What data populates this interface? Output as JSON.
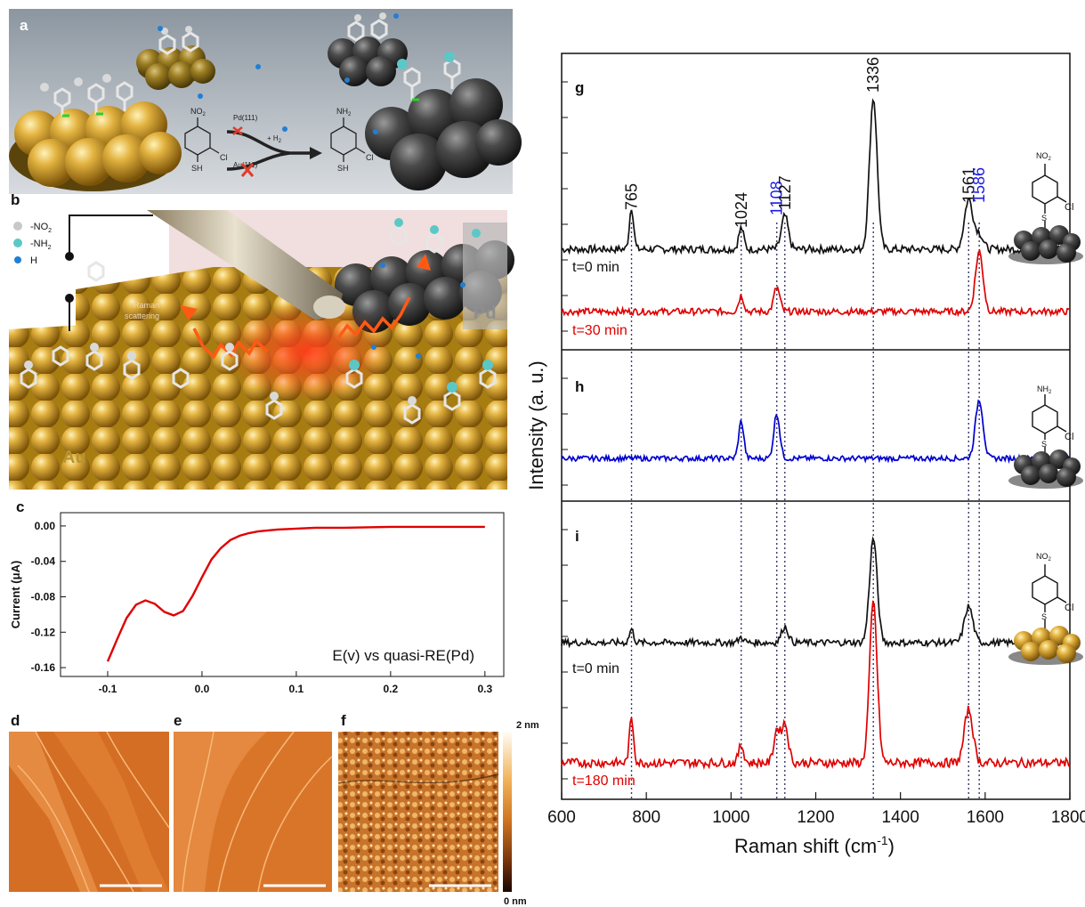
{
  "panel_letters": {
    "a": "a",
    "b": "b",
    "c": "c",
    "d": "d",
    "e": "e",
    "f": "f",
    "g": "g",
    "h": "h",
    "i": "i"
  },
  "scheme_a": {
    "reactant_group": "NO",
    "reactant_group_sub": "2",
    "reactant_cl": "Cl",
    "reactant_sh": "SH",
    "product_group": "NH",
    "product_group_sub": "2",
    "product_cl": "Cl",
    "product_sh": "SH",
    "catalyst_pd": "Pd(111)",
    "catalyst_au": "Au(111)",
    "h2_label": "+ H",
    "h2_sub": "2"
  },
  "legend_b": [
    {
      "text": "-NO",
      "sub": "2",
      "color": "#c8c8c8"
    },
    {
      "text": "-NH",
      "sub": "2",
      "color": "#5cc7c7"
    },
    {
      "text": "H",
      "sub": "",
      "color": "#1f7fd4"
    }
  ],
  "panel_b": {
    "raman": "Raman",
    "raman2": "scattering",
    "pd": "Pd",
    "au": "Au"
  },
  "afm": {
    "scale_max": "2 nm",
    "scale_min": "0 nm"
  },
  "colors": {
    "black_trace": "#111111",
    "red_trace": "#e00000",
    "blue_trace": "#0000d0",
    "blue_label": "#1a1ae6",
    "au": "#c9a03a",
    "pd": "#3d3d3d"
  },
  "chart_data": [
    {
      "type": "line",
      "panel": "c",
      "ylabel": "Current (μA)",
      "annotation": "E(v) vs quasi-RE(Pd)",
      "xlim": [
        -0.15,
        0.32
      ],
      "ylim": [
        -0.17,
        0.015
      ],
      "xticks": [
        -0.1,
        0.0,
        0.1,
        0.2,
        0.3
      ],
      "xtick_labels": [
        "-0.1",
        "0.0",
        "0.1",
        "0.2",
        "0.3"
      ],
      "yticks": [
        0.0,
        -0.04,
        -0.08,
        -0.12,
        -0.16
      ],
      "ytick_labels": [
        "0.00",
        "-0.04",
        "-0.08",
        "-0.12",
        "-0.16"
      ],
      "series": [
        {
          "color": "#e00000",
          "x": [
            -0.1,
            -0.09,
            -0.08,
            -0.07,
            -0.06,
            -0.05,
            -0.04,
            -0.03,
            -0.02,
            -0.01,
            0.0,
            0.01,
            0.02,
            0.03,
            0.04,
            0.05,
            0.06,
            0.08,
            0.1,
            0.12,
            0.15,
            0.2,
            0.25,
            0.3
          ],
          "y": [
            -0.153,
            -0.128,
            -0.104,
            -0.089,
            -0.084,
            -0.088,
            -0.097,
            -0.101,
            -0.096,
            -0.079,
            -0.058,
            -0.038,
            -0.025,
            -0.016,
            -0.011,
            -0.008,
            -0.006,
            -0.004,
            -0.003,
            -0.002,
            -0.002,
            -0.001,
            -0.001,
            -0.001
          ]
        }
      ]
    },
    {
      "type": "line",
      "panels": [
        "g",
        "h",
        "i"
      ],
      "xlabel": "Raman shift (cm",
      "xlabel_sup": "-1",
      "xlabel_close": ")",
      "ylabel": "Intensity (a. u.)",
      "xlim": [
        600,
        1800
      ],
      "xticks": [
        600,
        800,
        1000,
        1200,
        1400,
        1600,
        1800
      ],
      "xtick_labels": [
        "600",
        "800",
        "1000",
        "1200",
        "1400",
        "1600",
        "1800"
      ],
      "reference_lines": [
        765,
        1024,
        1108,
        1127,
        1336,
        1561,
        1586
      ],
      "peak_labels": [
        {
          "x": 765,
          "text": "765",
          "color": "#111111"
        },
        {
          "x": 1024,
          "text": "1024",
          "color": "#111111"
        },
        {
          "x": 1108,
          "text": "1108",
          "color": "#1a1ae6"
        },
        {
          "x": 1127,
          "text": "1127",
          "color": "#111111"
        },
        {
          "x": 1336,
          "text": "1336",
          "color": "#111111"
        },
        {
          "x": 1561,
          "text": "1561",
          "color": "#111111"
        },
        {
          "x": 1586,
          "text": "1586",
          "color": "#1a1ae6"
        }
      ],
      "spectra": [
        {
          "panel": "g",
          "label": "t=0 min",
          "label_color": "#111111",
          "color": "#111111",
          "peaks": [
            [
              765,
              0.28
            ],
            [
              1024,
              0.14
            ],
            [
              1127,
              0.22
            ],
            [
              1336,
              1.0
            ],
            [
              1561,
              0.33
            ],
            [
              1586,
              0.1
            ]
          ]
        },
        {
          "panel": "g",
          "label": "t=30 min",
          "label_color": "#e00000",
          "color": "#e00000",
          "peaks": [
            [
              1024,
              0.12
            ],
            [
              1108,
              0.18
            ],
            [
              1586,
              0.45
            ]
          ]
        },
        {
          "panel": "h",
          "label": "",
          "label_color": "#0000d0",
          "color": "#0000d0",
          "peaks": [
            [
              1024,
              0.35
            ],
            [
              1108,
              0.42
            ],
            [
              1586,
              0.55
            ]
          ]
        },
        {
          "panel": "i",
          "label": "t=0 min",
          "label_color": "#111111",
          "color": "#111111",
          "peaks": [
            [
              765,
              0.1
            ],
            [
              1024,
              0.04
            ],
            [
              1127,
              0.12
            ],
            [
              1336,
              0.78
            ],
            [
              1561,
              0.27
            ]
          ]
        },
        {
          "panel": "i",
          "label": "t=180 min",
          "label_color": "#e00000",
          "color": "#e00000",
          "peaks": [
            [
              765,
              0.25
            ],
            [
              1024,
              0.1
            ],
            [
              1108,
              0.18
            ],
            [
              1127,
              0.22
            ],
            [
              1336,
              0.9
            ],
            [
              1561,
              0.3
            ]
          ]
        }
      ]
    }
  ],
  "molecules": {
    "g": {
      "top": "NO",
      "top_sub": "2",
      "cl": "Cl",
      "s": "S"
    },
    "h": {
      "top": "NH",
      "top_sub": "2",
      "cl": "Cl",
      "s": "S"
    },
    "i": {
      "top": "NO",
      "top_sub": "2",
      "cl": "Cl",
      "s": "S"
    }
  }
}
